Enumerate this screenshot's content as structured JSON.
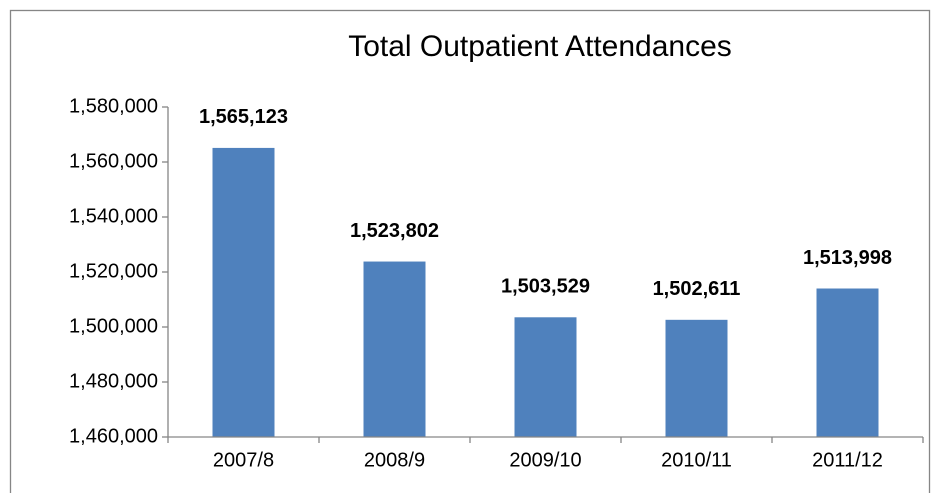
{
  "chart_data": {
    "type": "bar",
    "title": "Total Outpatient Attendances",
    "categories": [
      "2007/8",
      "2008/9",
      "2009/10",
      "2010/11",
      "2011/12"
    ],
    "values": [
      1565123,
      1523802,
      1503529,
      1502611,
      1513998
    ],
    "value_labels": [
      "1,565,123",
      "1,523,802",
      "1,503,529",
      "1,502,611",
      "1,513,998"
    ],
    "color": "#4f81bd",
    "ylim": [
      1460000,
      1580000
    ],
    "yticks": [
      {
        "value": 1460000,
        "label": "1,460,000"
      },
      {
        "value": 1480000,
        "label": "1,480,000"
      },
      {
        "value": 1500000,
        "label": "1,500,000"
      },
      {
        "value": 1520000,
        "label": "1,520,000"
      },
      {
        "value": 1540000,
        "label": "1,540,000"
      },
      {
        "value": 1560000,
        "label": "1,560,000"
      },
      {
        "value": 1580000,
        "label": "1,580,000"
      }
    ],
    "grid": false
  }
}
